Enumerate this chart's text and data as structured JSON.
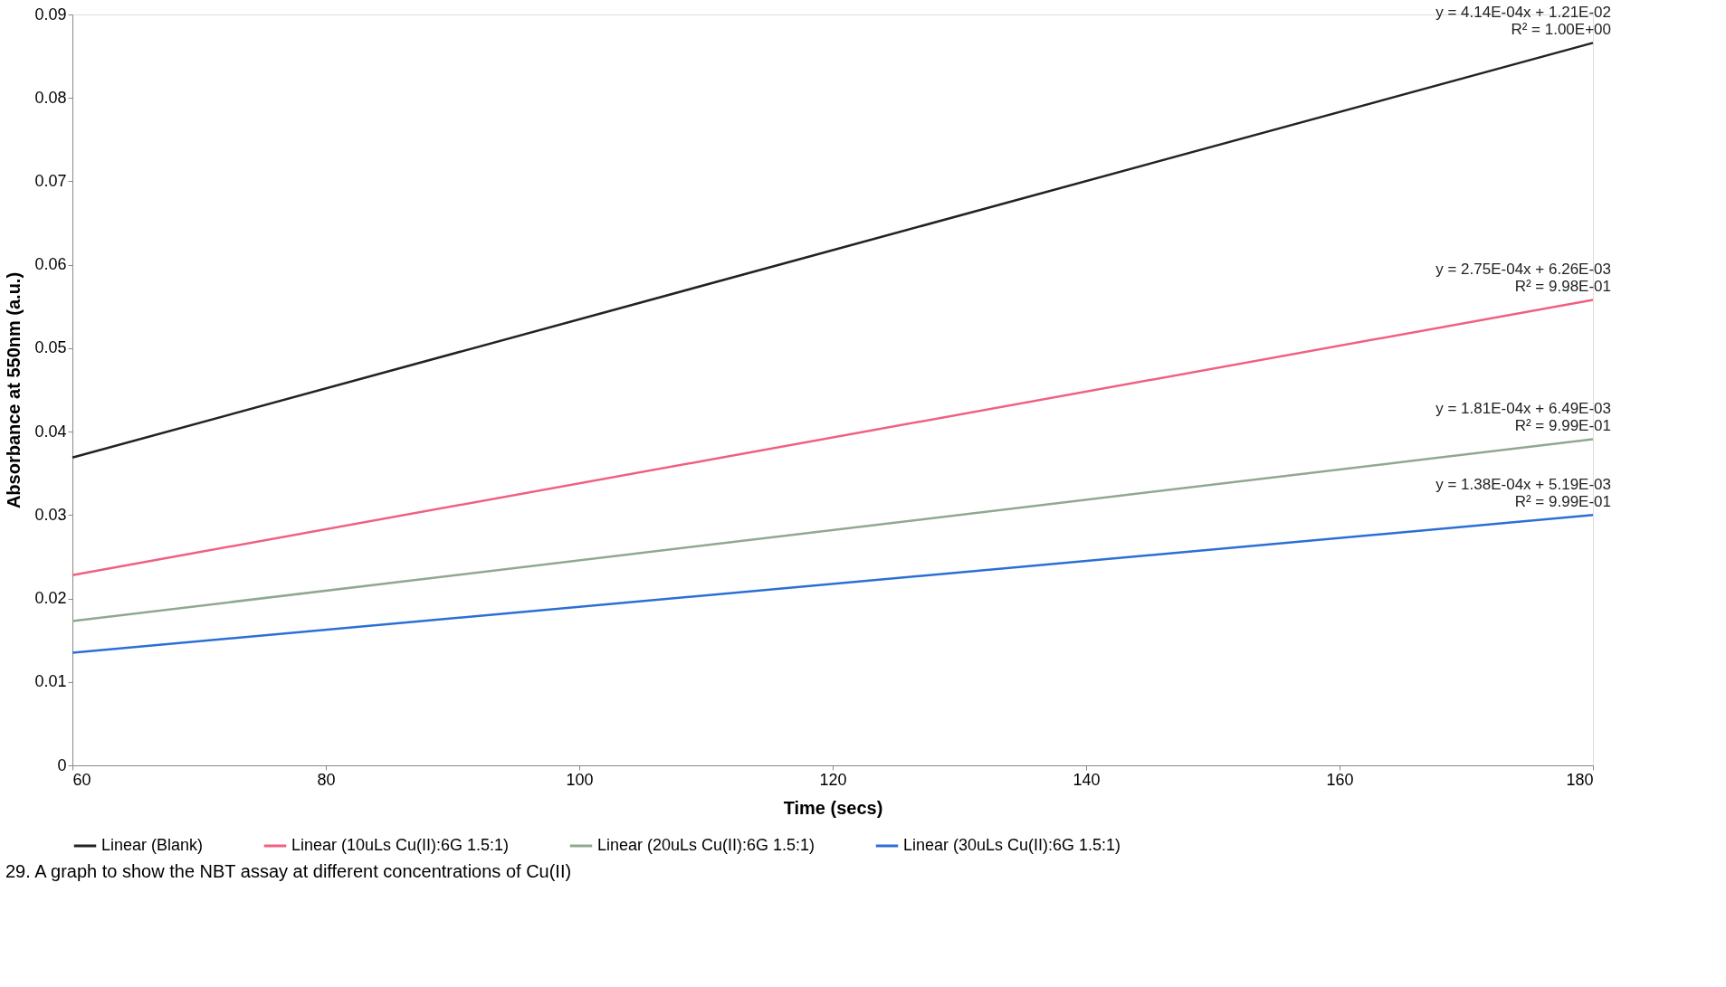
{
  "chart_data": {
    "type": "line",
    "xlabel": "Time (secs)",
    "ylabel": "Absorbance at 550nm (a.u.)",
    "x": [
      60,
      180
    ],
    "series": [
      {
        "name": "Linear (Blank)",
        "color": "#222222",
        "values": [
          0.0369,
          0.0866
        ]
      },
      {
        "name": "Linear (10uLs Cu(II):6G 1.5:1)",
        "color": "#f06080",
        "values": [
          0.0228,
          0.0558
        ]
      },
      {
        "name": "Linear (20uLs Cu(II):6G 1.5:1)",
        "color": "#90a890",
        "values": [
          0.0173,
          0.0391
        ]
      },
      {
        "name": "Linear (30uLs Cu(II):6G 1.5:1)",
        "color": "#2a6fd6",
        "values": [
          0.0135,
          0.03
        ]
      }
    ],
    "annotations": [
      "y = 4.14E-04x + 1.21E-02\nR² = 1.00E+00",
      "y = 2.75E-04x + 6.26E-03\nR² = 9.98E-01",
      "y = 1.81E-04x + 6.49E-03\nR² = 9.99E-01",
      "y = 1.38E-04x + 5.19E-03\nR² = 9.99E-01",
      "29. A graph to show the NBT assay at different concentrations of Cu(II)"
    ],
    "xlim": [
      60,
      180
    ],
    "xticks": [
      60,
      80,
      100,
      120,
      140,
      160,
      180
    ],
    "ylim": [
      0,
      0.09
    ],
    "yticks": [
      0,
      0.01,
      0.02,
      0.03,
      0.04,
      0.05,
      0.06,
      0.07,
      0.08,
      0.09
    ],
    "grid": false,
    "legend": "bottom",
    "line_style": "solid",
    "marker": "none"
  }
}
